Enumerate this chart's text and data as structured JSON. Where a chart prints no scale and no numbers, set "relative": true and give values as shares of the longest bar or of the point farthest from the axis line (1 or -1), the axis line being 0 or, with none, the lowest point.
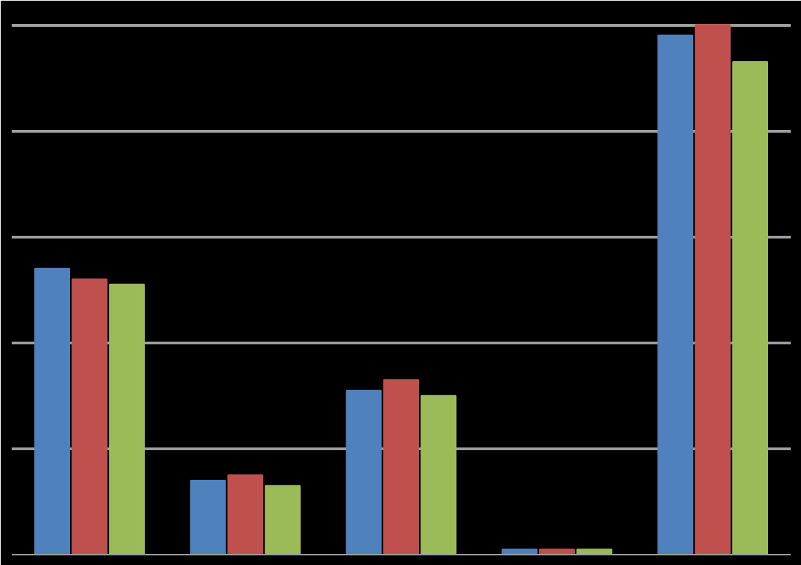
{
  "chart_data": {
    "type": "bar",
    "relative": true,
    "grid": "y",
    "categories": [
      null,
      null,
      null,
      null,
      null
    ],
    "series": [
      {
        "color": "#4f81bd",
        "values": [
          0.54,
          0.14,
          0.31,
          0.01,
          0.98
        ]
      },
      {
        "color": "#c0504d",
        "values": [
          0.52,
          0.15,
          0.33,
          0.01,
          1
        ]
      },
      {
        "color": "#9bbb59",
        "values": [
          0.51,
          0.13,
          0.3,
          0.01,
          0.93
        ]
      }
    ]
  }
}
